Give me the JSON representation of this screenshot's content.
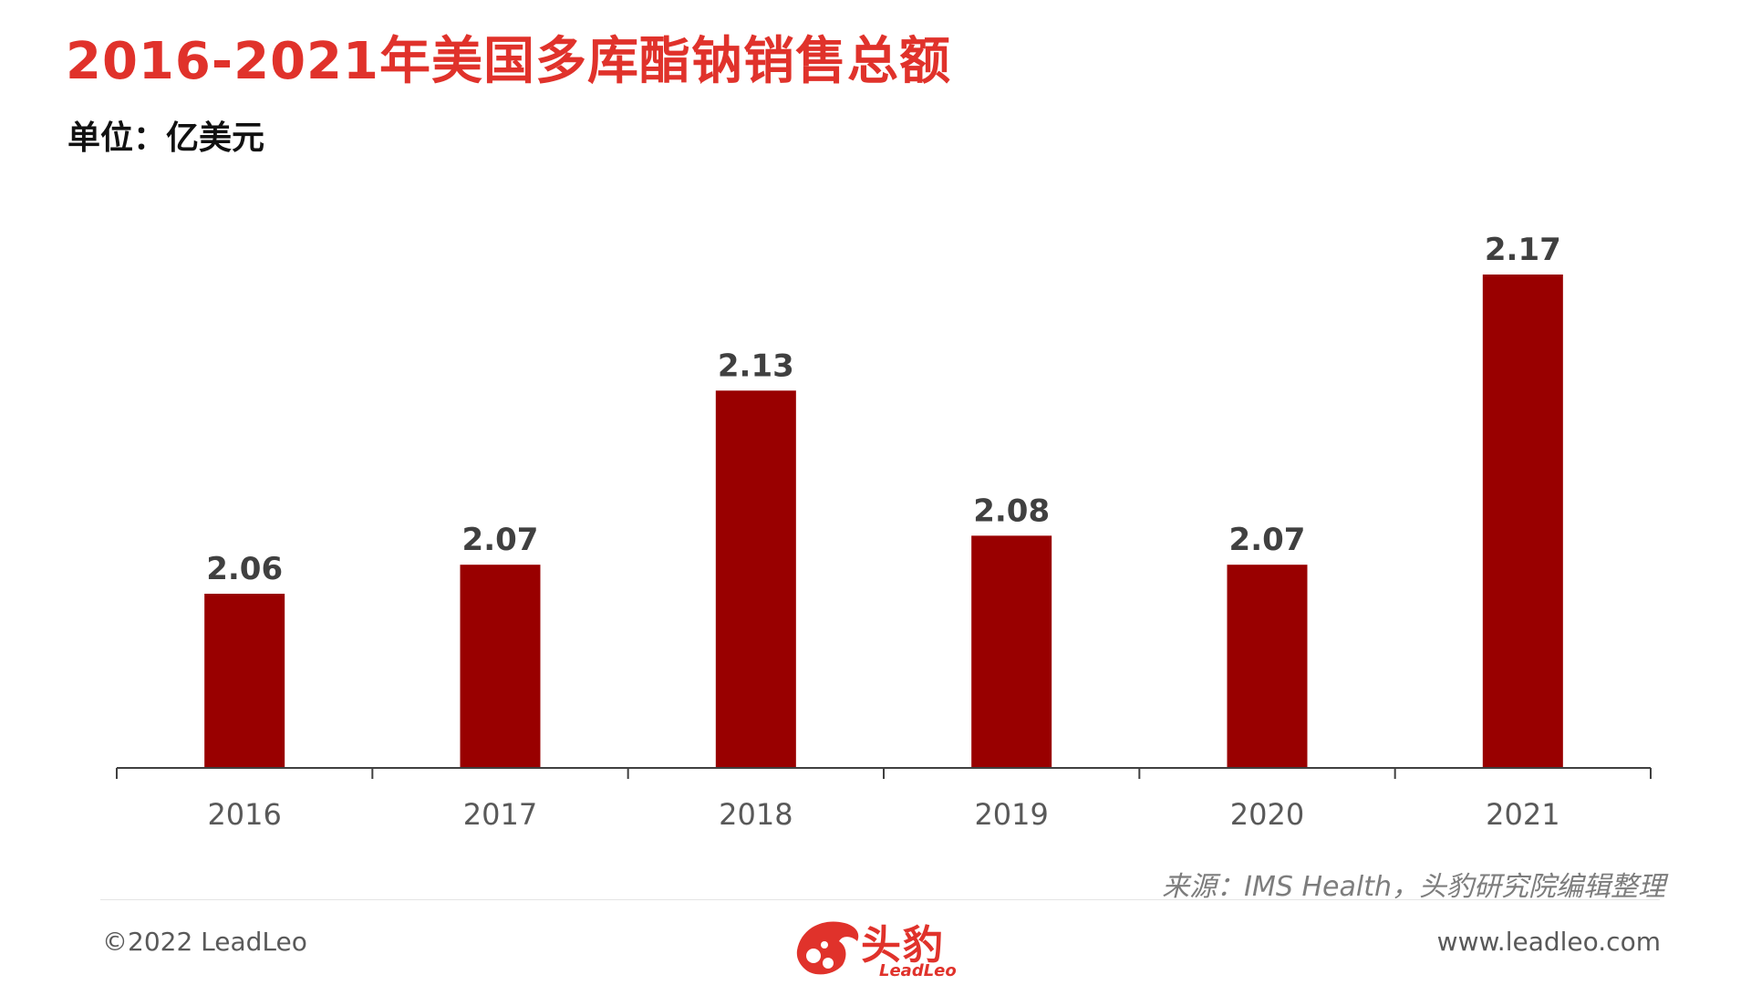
{
  "header": {
    "title": "2016-2021年美国多库酯钠销售总额",
    "unit": "单位：亿美元"
  },
  "chart_data": {
    "type": "bar",
    "categories": [
      "2016",
      "2017",
      "2018",
      "2019",
      "2020",
      "2021"
    ],
    "values": [
      2.06,
      2.07,
      2.13,
      2.08,
      2.07,
      2.17
    ],
    "data_labels": [
      "2.06",
      "2.07",
      "2.13",
      "2.08",
      "2.07",
      "2.17"
    ],
    "title": "2016-2021年美国多库酯钠销售总额",
    "ylabel": "单位：亿美元",
    "grid": false,
    "bar_color": "#990000"
  },
  "footer": {
    "source": "来源：IMS Health，头豹研究院编辑整理",
    "copyright": "©2022 LeadLeo",
    "website": "www.leadleo.com",
    "brand_cn": "头豹",
    "brand_en": "LeadLeo",
    "brand_color": "#e0322b",
    "logo_icon": "leopard-head-icon"
  }
}
